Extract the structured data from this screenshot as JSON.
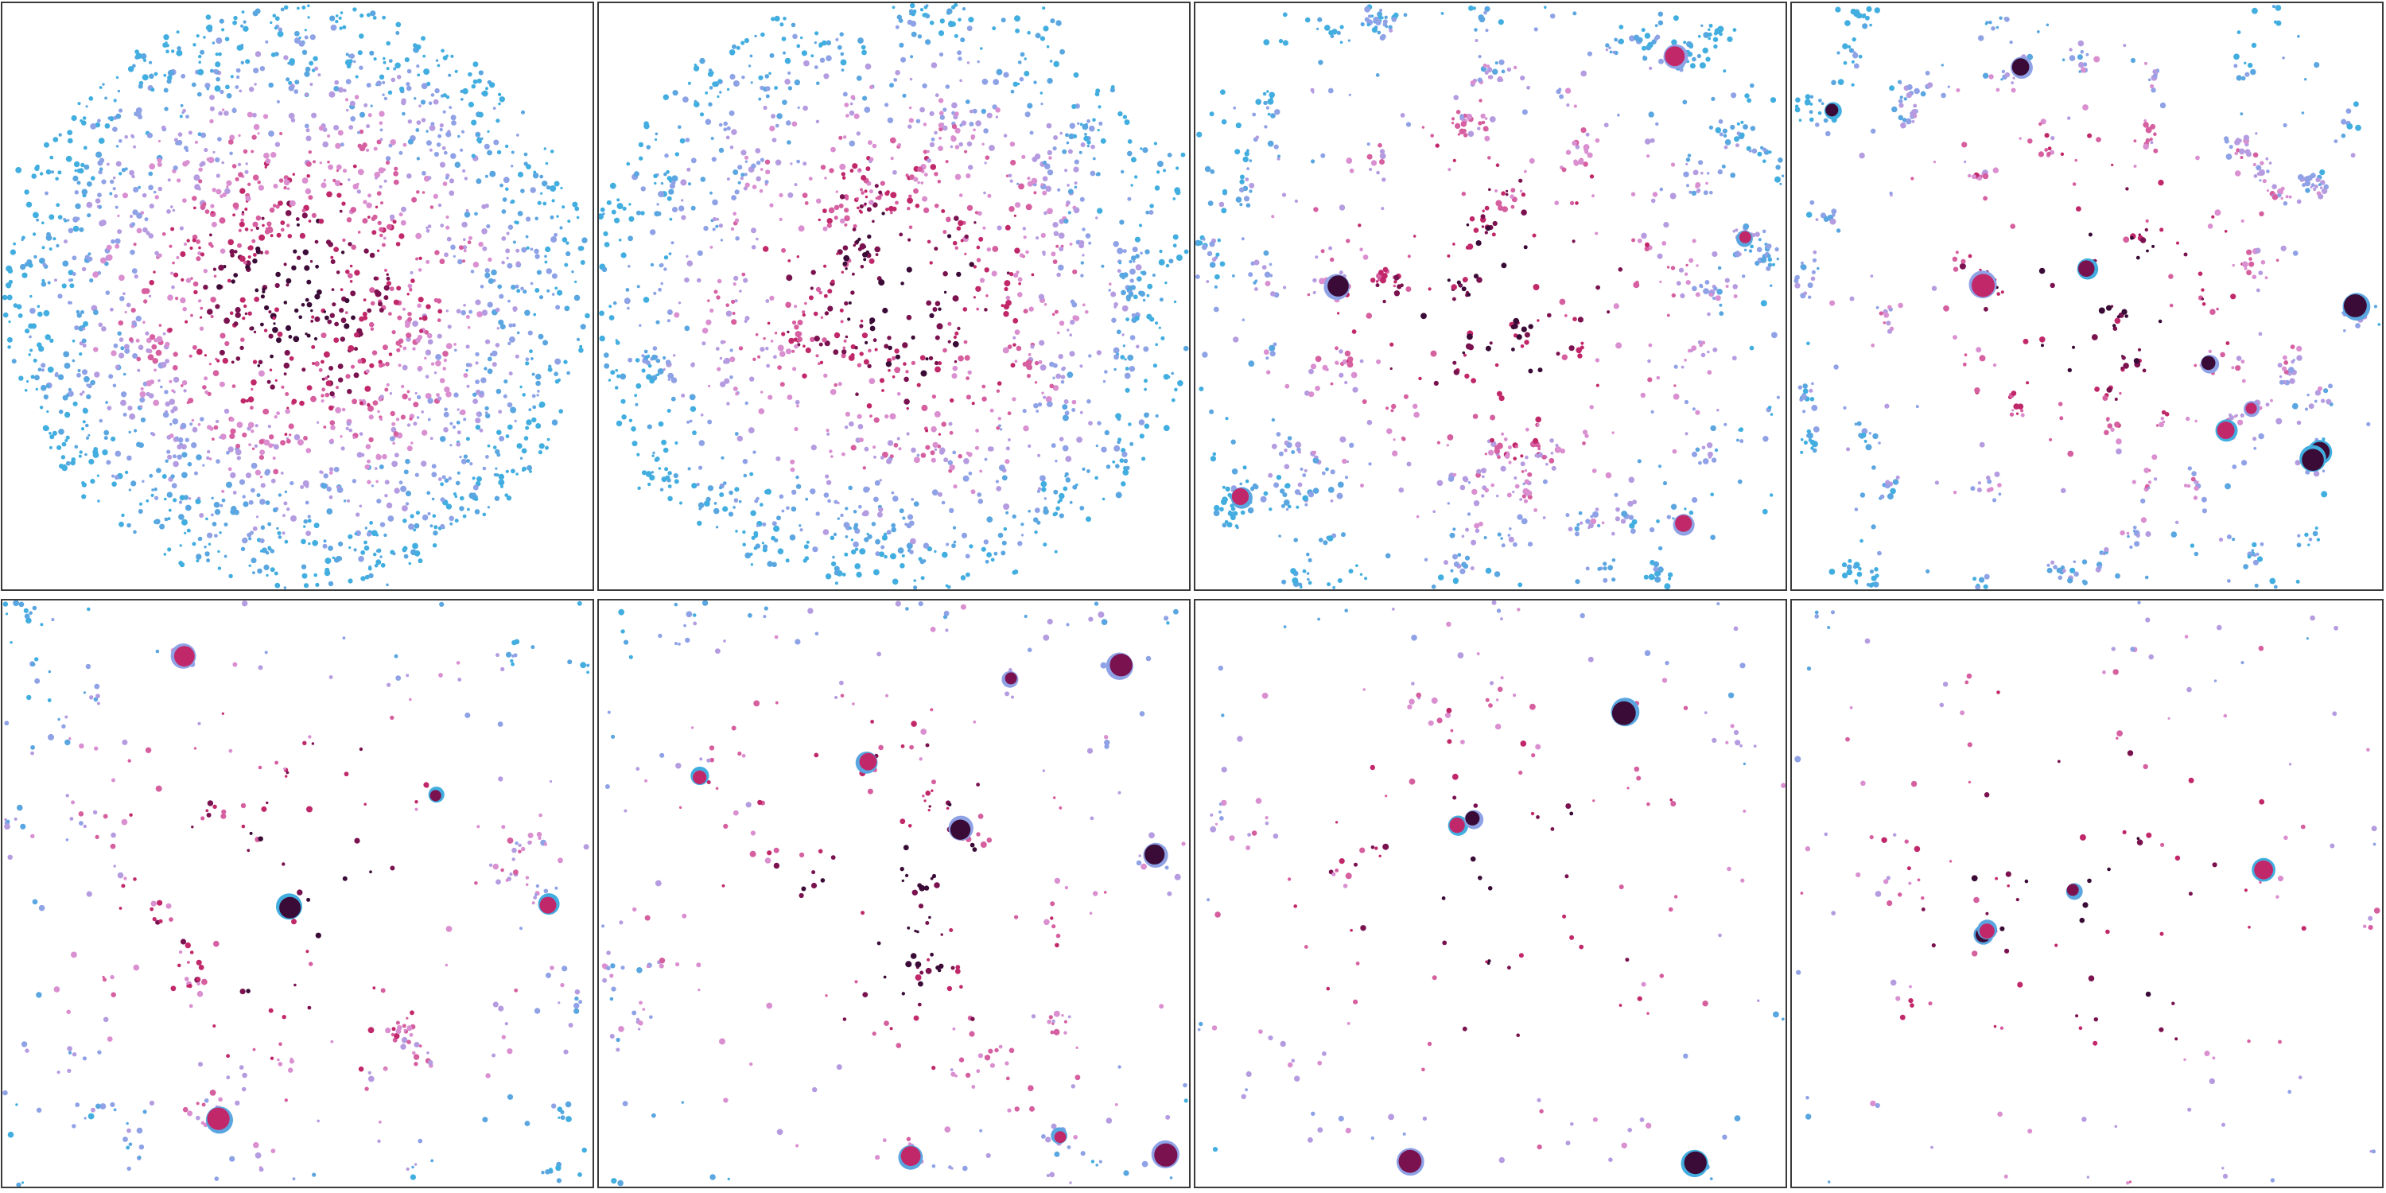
{
  "figure": {
    "title": "",
    "rows": 2,
    "columns": 4,
    "panel_labels": []
  },
  "colors": {
    "palette": [
      "#3a0b36",
      "#7a1250",
      "#c1286a",
      "#d65fa0",
      "#d98fd0",
      "#b59be0",
      "#8fa2e6",
      "#5aa6e0",
      "#42aee0"
    ],
    "border": "#3a3a3a",
    "background": "#ffffff"
  },
  "chart_data": [
    {
      "type": "scatter",
      "title": "",
      "xlabel": "",
      "ylabel": "",
      "xlim": [
        0,
        1
      ],
      "ylim": [
        0,
        1
      ],
      "grid": false,
      "legend": "none",
      "stage": 1,
      "n_points": 2200,
      "clustering": 0.05,
      "disk_radius": 0.5,
      "big_blobs": 0,
      "note": ""
    },
    {
      "type": "scatter",
      "title": "",
      "xlabel": "",
      "ylabel": "",
      "xlim": [
        0,
        1
      ],
      "ylim": [
        0,
        1
      ],
      "grid": false,
      "legend": "none",
      "stage": 2,
      "n_points": 1700,
      "clustering": 0.35,
      "disk_radius": 0.52,
      "big_blobs": 0,
      "note": ""
    },
    {
      "type": "scatter",
      "title": "",
      "xlabel": "",
      "ylabel": "",
      "xlim": [
        0,
        1
      ],
      "ylim": [
        0,
        1
      ],
      "grid": false,
      "legend": "none",
      "stage": 3,
      "n_points": 1300,
      "clustering": 0.65,
      "disk_radius": 0.6,
      "big_blobs": 6,
      "note": ""
    },
    {
      "type": "scatter",
      "title": "",
      "xlabel": "",
      "ylabel": "",
      "xlim": [
        0,
        1
      ],
      "ylim": [
        0,
        1
      ],
      "grid": false,
      "legend": "none",
      "stage": 4,
      "n_points": 1000,
      "clustering": 0.75,
      "disk_radius": 0.62,
      "big_blobs": 10,
      "note": ""
    },
    {
      "type": "scatter",
      "title": "",
      "xlabel": "",
      "ylabel": "",
      "xlim": [
        0,
        1
      ],
      "ylim": [
        0,
        1
      ],
      "grid": false,
      "legend": "none",
      "stage": 5,
      "n_points": 750,
      "clustering": 0.7,
      "disk_radius": 0.7,
      "big_blobs": 14,
      "note": ""
    },
    {
      "type": "scatter",
      "title": "",
      "xlabel": "",
      "ylabel": "",
      "xlim": [
        0,
        1
      ],
      "ylim": [
        0,
        1
      ],
      "grid": false,
      "legend": "none",
      "stage": 6,
      "n_points": 620,
      "clustering": 0.6,
      "disk_radius": 0.75,
      "big_blobs": 16,
      "note": ""
    },
    {
      "type": "scatter",
      "title": "",
      "xlabel": "",
      "ylabel": "",
      "xlim": [
        0,
        1
      ],
      "ylim": [
        0,
        1
      ],
      "grid": false,
      "legend": "none",
      "stage": 7,
      "n_points": 480,
      "clustering": 0.5,
      "disk_radius": 0.8,
      "big_blobs": 16,
      "note": ""
    },
    {
      "type": "scatter",
      "title": "",
      "xlabel": "",
      "ylabel": "",
      "xlim": [
        0,
        1
      ],
      "ylim": [
        0,
        1
      ],
      "grid": false,
      "legend": "none",
      "stage": 8,
      "n_points": 380,
      "clustering": 0.45,
      "disk_radius": 0.85,
      "big_blobs": 14,
      "note": ""
    }
  ]
}
